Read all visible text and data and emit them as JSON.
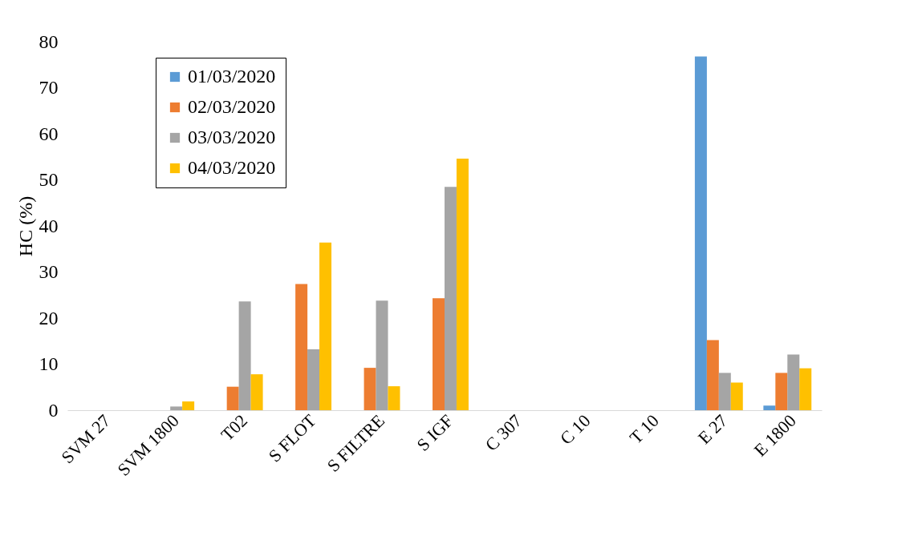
{
  "chart_data": {
    "type": "bar",
    "ylabel": "HC (%)",
    "categories": [
      "SVM 27",
      "SVM 1800",
      "T02",
      "S FLOT",
      "S FILTRE",
      "S IGF",
      "C 307",
      "C 10",
      "T 10",
      "E 27",
      "E 1800"
    ],
    "series": [
      {
        "name": "01/03/2020",
        "color": "#5b9bd5",
        "values": [
          0,
          0,
          0,
          0,
          0,
          0,
          0,
          0,
          0,
          76.8,
          1.0
        ]
      },
      {
        "name": "02/03/2020",
        "color": "#ed7d31",
        "values": [
          0,
          0,
          5.1,
          27.4,
          9.2,
          24.3,
          0,
          0,
          0,
          15.2,
          8.1
        ]
      },
      {
        "name": "03/03/2020",
        "color": "#a5a5a5",
        "values": [
          0,
          0.8,
          23.6,
          13.2,
          23.8,
          48.5,
          0,
          0,
          0,
          8.1,
          12.1
        ]
      },
      {
        "name": "04/03/2020",
        "color": "#ffc000",
        "values": [
          0,
          1.9,
          7.8,
          36.4,
          5.2,
          54.6,
          0,
          0,
          0,
          6.0,
          9.1
        ]
      }
    ],
    "ylim": [
      0,
      80
    ],
    "yticks": [
      0,
      10,
      20,
      30,
      40,
      50,
      60,
      70,
      80
    ],
    "grid": false,
    "legend": "top left"
  }
}
